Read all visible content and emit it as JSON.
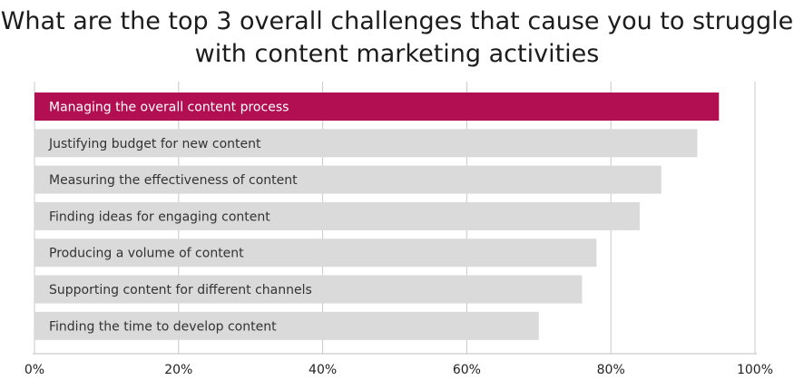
{
  "title_line1": "What are the top 3 overall challenges that cause you to struggle",
  "title_line2": "with content marketing activities",
  "colors": {
    "highlight": "#b10f52",
    "bar": "#dadada",
    "grid": "#c8c8c8",
    "axis": "#bfbfbf",
    "highlight_text": "#ffffff",
    "text": "#333333"
  },
  "chart_data": {
    "type": "bar",
    "orientation": "horizontal",
    "title": "What are the top 3 overall challenges that cause you to struggle with content marketing activities",
    "categories": [
      "Managing the overall content process",
      "Justifying budget for new content",
      "Measuring the effectiveness of content",
      "Finding ideas for engaging content",
      "Producing a volume of content",
      "Supporting content for different channels",
      "Finding the time to develop content"
    ],
    "values": [
      95,
      92,
      87,
      84,
      78,
      76,
      70
    ],
    "highlighted_index": 0,
    "xlim": [
      0,
      100
    ],
    "xticks": [
      "0%",
      "20%",
      "40%",
      "60%",
      "80%",
      "100%"
    ],
    "tick_values": [
      0,
      20,
      40,
      60,
      80,
      100
    ],
    "grid": true,
    "legend": "none"
  }
}
